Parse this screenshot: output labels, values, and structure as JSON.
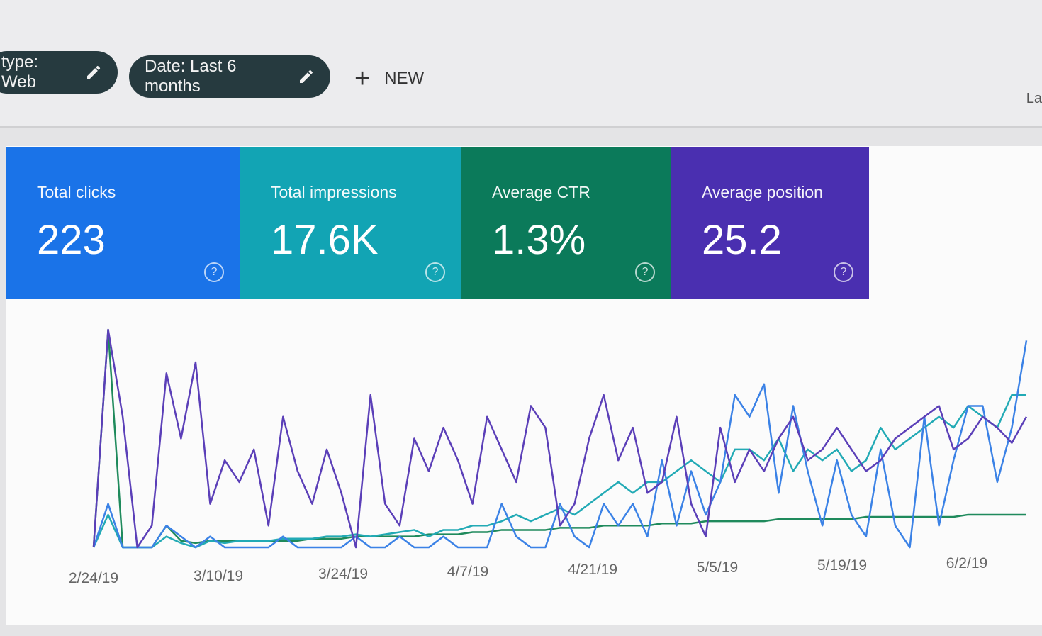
{
  "filters": [
    {
      "label": "type: Web",
      "icon": "pencil-icon"
    },
    {
      "label": "Date: Last 6 months",
      "icon": "pencil-icon"
    }
  ],
  "new_button": {
    "icon": "plus-icon",
    "label": "NEW"
  },
  "cut_off_text": "La",
  "metrics": [
    {
      "label": "Total clicks",
      "value": "223",
      "color": "#1a73e8"
    },
    {
      "label": "Total impressions",
      "value": "17.6K",
      "color": "#12a4b4"
    },
    {
      "label": "Average CTR",
      "value": "1.3%",
      "color": "#0b7a5a"
    },
    {
      "label": "Average position",
      "value": "25.2",
      "color": "#4a2fb0"
    }
  ],
  "chart_data": {
    "type": "line",
    "x_tick_labels": [
      "2/24/19",
      "3/10/19",
      "3/24/19",
      "4/7/19",
      "4/21/19",
      "5/5/19",
      "5/19/19",
      "6/2/19"
    ],
    "y_axis": "hidden (relative scale 0-100 per series)",
    "grid": false,
    "series": [
      {
        "metric": "Average position",
        "color": "#5b3fb8",
        "values": [
          0,
          100,
          60,
          0,
          10,
          80,
          50,
          85,
          20,
          40,
          30,
          45,
          10,
          60,
          35,
          20,
          45,
          25,
          0,
          70,
          20,
          10,
          50,
          35,
          55,
          40,
          20,
          60,
          45,
          30,
          65,
          55,
          10,
          20,
          50,
          70,
          40,
          55,
          25,
          30,
          60,
          20,
          5,
          55,
          30,
          45,
          35,
          50,
          60,
          40,
          45,
          55,
          45,
          35,
          40,
          50,
          55,
          60,
          65,
          45,
          50,
          60,
          55,
          48,
          60
        ]
      },
      {
        "metric": "Total clicks",
        "color": "#3b82e6",
        "values": [
          0,
          20,
          0,
          0,
          0,
          10,
          5,
          0,
          5,
          0,
          0,
          0,
          0,
          5,
          0,
          0,
          0,
          0,
          5,
          0,
          0,
          5,
          0,
          0,
          5,
          0,
          0,
          0,
          20,
          5,
          0,
          0,
          20,
          5,
          0,
          20,
          10,
          20,
          5,
          40,
          10,
          35,
          15,
          30,
          70,
          60,
          75,
          25,
          65,
          35,
          10,
          40,
          15,
          5,
          45,
          10,
          0,
          60,
          10,
          40,
          65,
          65,
          30,
          55,
          95
        ]
      },
      {
        "metric": "Total impressions",
        "color": "#22aab5",
        "values": [
          0,
          15,
          0,
          0,
          0,
          5,
          2,
          0,
          3,
          2,
          3,
          3,
          3,
          4,
          4,
          4,
          5,
          5,
          6,
          5,
          6,
          7,
          8,
          5,
          8,
          8,
          10,
          10,
          12,
          15,
          12,
          15,
          18,
          15,
          20,
          25,
          30,
          25,
          30,
          30,
          35,
          40,
          35,
          30,
          45,
          45,
          40,
          50,
          35,
          45,
          40,
          45,
          35,
          40,
          55,
          45,
          50,
          55,
          60,
          55,
          65,
          60,
          55,
          70,
          70
        ]
      },
      {
        "metric": "Average CTR",
        "color": "#1f8a5c",
        "values": [
          0,
          100,
          0,
          0,
          0,
          10,
          3,
          2,
          3,
          3,
          3,
          3,
          3,
          3,
          3,
          4,
          4,
          4,
          5,
          5,
          5,
          5,
          5,
          6,
          6,
          6,
          7,
          7,
          8,
          8,
          8,
          8,
          9,
          9,
          9,
          10,
          10,
          10,
          10,
          11,
          11,
          11,
          12,
          12,
          12,
          12,
          12,
          13,
          13,
          13,
          13,
          13,
          13,
          14,
          14,
          14,
          14,
          14,
          14,
          14,
          15,
          15,
          15,
          15,
          15
        ]
      }
    ]
  }
}
